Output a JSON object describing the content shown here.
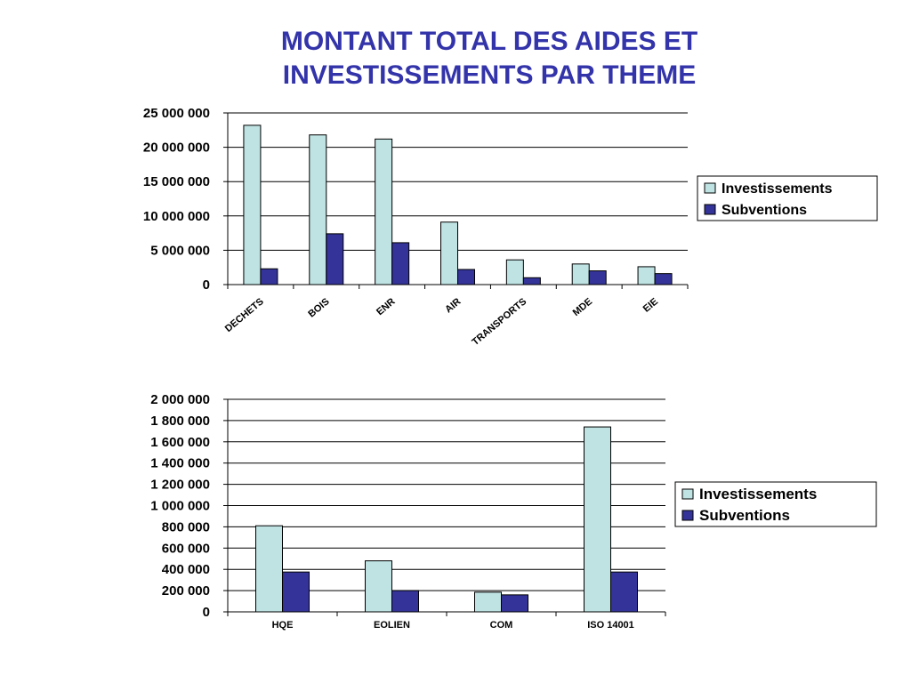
{
  "slide": {
    "title_line1": "MONTANT TOTAL DES AIDES ET",
    "title_line2": "INVESTISSEMENTS PAR THEME"
  },
  "colors": {
    "title": "#3333aa",
    "investissements": "#bfe3e3",
    "subventions": "#333399",
    "axis": "#000000"
  },
  "chart_data": [
    {
      "type": "bar",
      "title": "",
      "xlabel": "",
      "ylabel": "",
      "categories": [
        "DECHETS",
        "BOIS",
        "ENR",
        "AIR",
        "TRANSPORTS",
        "MDE",
        "EIE"
      ],
      "category_label_rotation": -40,
      "ylim": [
        0,
        25000000
      ],
      "yticks": [
        0,
        5000000,
        10000000,
        15000000,
        20000000,
        25000000
      ],
      "ytick_labels": [
        "0",
        "5 000 000",
        "10 000 000",
        "15 000 000",
        "20 000 000",
        "25 000 000"
      ],
      "grid": true,
      "legend_position": "right",
      "series": [
        {
          "name": "Investissements",
          "values": [
            23200000,
            21800000,
            21200000,
            9100000,
            3600000,
            3000000,
            2600000
          ]
        },
        {
          "name": "Subventions",
          "values": [
            2300000,
            7400000,
            6100000,
            2200000,
            1000000,
            2000000,
            1600000
          ]
        }
      ]
    },
    {
      "type": "bar",
      "title": "",
      "xlabel": "",
      "ylabel": "",
      "categories": [
        "HQE",
        "EOLIEN",
        "COM",
        "ISO 14001"
      ],
      "category_label_rotation": 0,
      "ylim": [
        0,
        2000000
      ],
      "yticks": [
        0,
        200000,
        400000,
        600000,
        800000,
        1000000,
        1200000,
        1400000,
        1600000,
        1800000,
        2000000
      ],
      "ytick_labels": [
        "0",
        "200 000",
        "400 000",
        "600 000",
        "800 000",
        "1 000 000",
        "1 200 000",
        "1 400 000",
        "1 600 000",
        "1 800 000",
        "2 000 000"
      ],
      "grid": true,
      "legend_position": "right",
      "series": [
        {
          "name": "Investissements",
          "values": [
            810000,
            480000,
            185000,
            1740000
          ]
        },
        {
          "name": "Subventions",
          "values": [
            375000,
            200000,
            160000,
            375000
          ]
        }
      ]
    }
  ]
}
